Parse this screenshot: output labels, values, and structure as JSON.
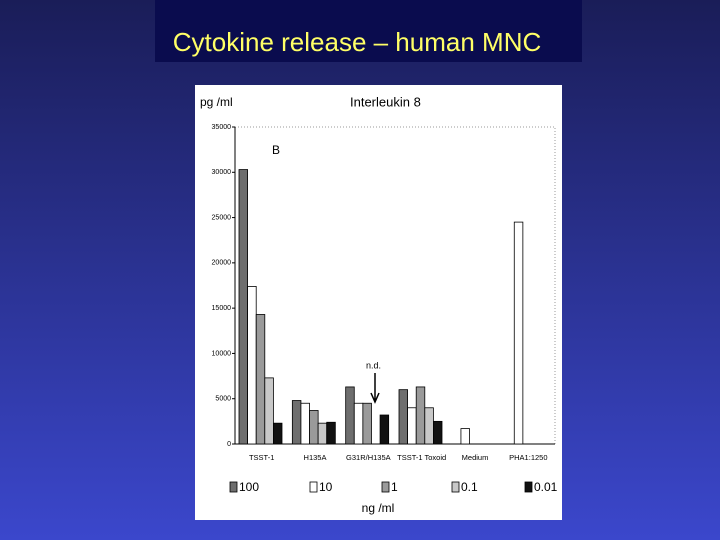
{
  "slide_title": "Cytokine release – human MNC",
  "chart_data": {
    "type": "bar",
    "title": "Interleukin 8",
    "y_label": "pg /ml",
    "x_label": "ng /ml",
    "annotations": [
      "B",
      "n.d."
    ],
    "categories": [
      "TSST-1",
      "H135A",
      "G31R/H135A",
      "TSST-1 Toxoid",
      "Medium",
      "PHA1:1250"
    ],
    "series": [
      {
        "name": "100",
        "color": "#6e6e6e",
        "values": [
          30300,
          4800,
          6300,
          6000,
          null,
          null
        ]
      },
      {
        "name": "10",
        "color": "#ffffff",
        "values": [
          17400,
          4500,
          4500,
          4000,
          1700,
          24500
        ]
      },
      {
        "name": "1",
        "color": "#9a9a9a",
        "values": [
          14300,
          3700,
          4500,
          6300,
          null,
          null
        ]
      },
      {
        "name": "0.1",
        "color": "#c8c8c8",
        "values": [
          7300,
          2300,
          null,
          4000,
          null,
          null
        ]
      },
      {
        "name": "0.01",
        "color": "#111111",
        "values": [
          2300,
          2400,
          3200,
          2500,
          null,
          null
        ]
      }
    ],
    "ylim": [
      0,
      35000
    ],
    "yticks": [
      0,
      5000,
      10000,
      15000,
      20000,
      25000,
      30000,
      35000
    ],
    "grid": false
  }
}
